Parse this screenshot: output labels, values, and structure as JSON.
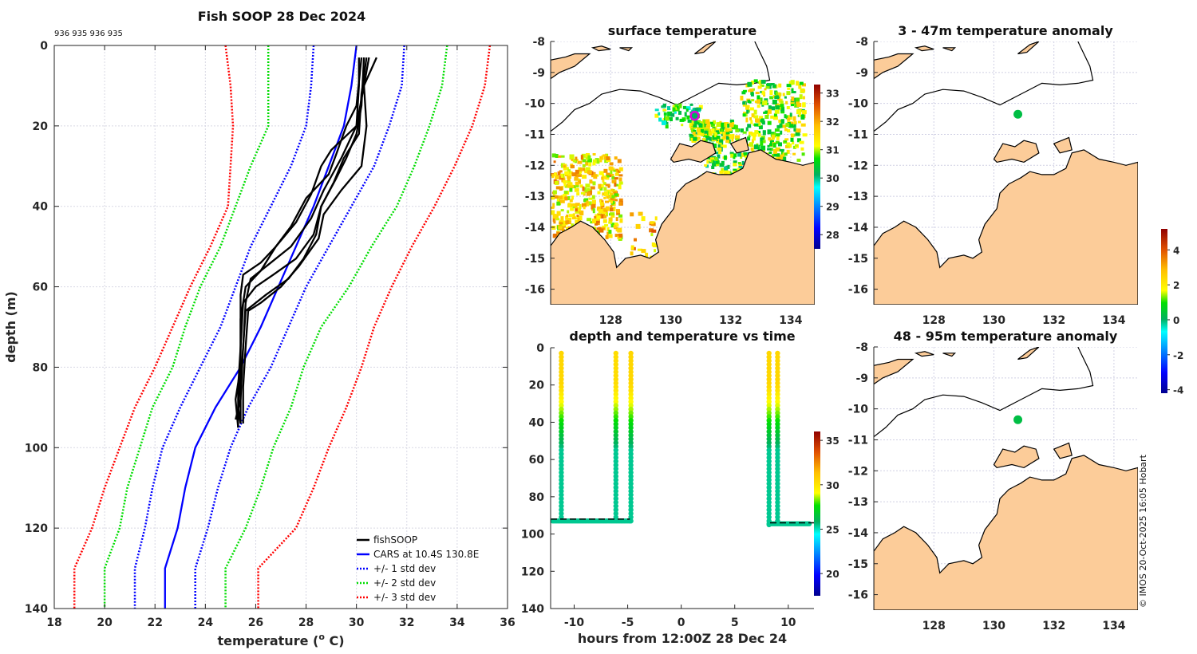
{
  "chart_data": [
    {
      "type": "line",
      "title": "Fish SOOP 28 Dec 2024",
      "annotation": "936 935 936 935",
      "xlabel": "temperature (o C)",
      "ylabel": "depth (m)",
      "xlim": [
        18,
        36
      ],
      "ylim": [
        0,
        140
      ],
      "y_reversed": true,
      "xticks": [
        18,
        20,
        22,
        24,
        26,
        28,
        30,
        32,
        34,
        36
      ],
      "yticks": [
        0,
        20,
        40,
        60,
        80,
        100,
        120,
        140
      ],
      "grid": true,
      "legend_position": "bottom-right",
      "legend": [
        {
          "label": "fishSOOP",
          "color": "#000000",
          "style": "solid"
        },
        {
          "label": "CARS at 10.4S 130.8E",
          "color": "#0000ff",
          "style": "solid"
        },
        {
          "label": "+/- 1 std dev",
          "color": "#0000ff",
          "style": "dotted"
        },
        {
          "label": "+/- 2 std dev",
          "color": "#00dd00",
          "style": "dotted"
        },
        {
          "label": "+/- 3 std dev",
          "color": "#ff0000",
          "style": "dotted"
        }
      ],
      "series": [
        {
          "name": "CARS at 10.4S 130.8E",
          "color": "#0000ff",
          "style": "solid",
          "points": [
            [
              30.0,
              0
            ],
            [
              29.8,
              10
            ],
            [
              29.5,
              20
            ],
            [
              28.9,
              30
            ],
            [
              28.3,
              40
            ],
            [
              27.6,
              50
            ],
            [
              26.9,
              60
            ],
            [
              26.2,
              70
            ],
            [
              25.4,
              80
            ],
            [
              24.4,
              90
            ],
            [
              23.6,
              100
            ],
            [
              23.2,
              110
            ],
            [
              22.9,
              120
            ],
            [
              22.4,
              130
            ],
            [
              22.4,
              140
            ]
          ]
        },
        {
          "name": "CARS -1 std dev",
          "color": "#0000ff",
          "style": "dotted",
          "points": [
            [
              28.3,
              0
            ],
            [
              28.2,
              10
            ],
            [
              28.0,
              20
            ],
            [
              27.4,
              30
            ],
            [
              26.6,
              40
            ],
            [
              25.8,
              50
            ],
            [
              25.2,
              60
            ],
            [
              24.6,
              70
            ],
            [
              23.8,
              80
            ],
            [
              23.0,
              90
            ],
            [
              22.3,
              100
            ],
            [
              21.9,
              110
            ],
            [
              21.6,
              120
            ],
            [
              21.2,
              130
            ],
            [
              21.2,
              140
            ]
          ]
        },
        {
          "name": "CARS +1 std dev",
          "color": "#0000ff",
          "style": "dotted",
          "points": [
            [
              31.9,
              0
            ],
            [
              31.8,
              10
            ],
            [
              31.3,
              20
            ],
            [
              30.7,
              30
            ],
            [
              29.8,
              40
            ],
            [
              28.9,
              50
            ],
            [
              28.0,
              60
            ],
            [
              27.3,
              70
            ],
            [
              26.6,
              80
            ],
            [
              25.7,
              90
            ],
            [
              25.0,
              100
            ],
            [
              24.5,
              110
            ],
            [
              24.1,
              120
            ],
            [
              23.6,
              130
            ],
            [
              23.6,
              140
            ]
          ]
        },
        {
          "name": "CARS -2 std dev",
          "color": "#00dd00",
          "style": "dotted",
          "points": [
            [
              26.5,
              0
            ],
            [
              26.5,
              10
            ],
            [
              26.5,
              20
            ],
            [
              25.8,
              30
            ],
            [
              25.2,
              40
            ],
            [
              24.6,
              50
            ],
            [
              23.8,
              60
            ],
            [
              23.2,
              70
            ],
            [
              22.7,
              80
            ],
            [
              21.9,
              90
            ],
            [
              21.4,
              100
            ],
            [
              20.9,
              110
            ],
            [
              20.6,
              120
            ],
            [
              20.0,
              130
            ],
            [
              20.0,
              140
            ]
          ]
        },
        {
          "name": "CARS +2 std dev",
          "color": "#00dd00",
          "style": "dotted",
          "points": [
            [
              33.6,
              0
            ],
            [
              33.4,
              10
            ],
            [
              32.9,
              20
            ],
            [
              32.3,
              30
            ],
            [
              31.6,
              40
            ],
            [
              30.6,
              50
            ],
            [
              29.7,
              60
            ],
            [
              28.6,
              70
            ],
            [
              27.9,
              80
            ],
            [
              27.4,
              90
            ],
            [
              26.7,
              100
            ],
            [
              26.2,
              110
            ],
            [
              25.6,
              120
            ],
            [
              24.8,
              130
            ],
            [
              24.8,
              140
            ]
          ]
        },
        {
          "name": "CARS -3 std dev",
          "color": "#ff0000",
          "style": "dotted",
          "points": [
            [
              24.8,
              0
            ],
            [
              25.0,
              10
            ],
            [
              25.1,
              20
            ],
            [
              25.0,
              30
            ],
            [
              24.9,
              40
            ],
            [
              24.2,
              50
            ],
            [
              23.4,
              60
            ],
            [
              22.7,
              70
            ],
            [
              22.0,
              80
            ],
            [
              21.2,
              90
            ],
            [
              20.6,
              100
            ],
            [
              20.0,
              110
            ],
            [
              19.5,
              120
            ],
            [
              18.8,
              130
            ],
            [
              18.8,
              140
            ]
          ]
        },
        {
          "name": "CARS +3 std dev",
          "color": "#ff0000",
          "style": "dotted",
          "points": [
            [
              35.3,
              0
            ],
            [
              35.1,
              10
            ],
            [
              34.6,
              20
            ],
            [
              33.9,
              30
            ],
            [
              33.1,
              40
            ],
            [
              32.2,
              50
            ],
            [
              31.4,
              60
            ],
            [
              30.7,
              70
            ],
            [
              30.2,
              80
            ],
            [
              29.6,
              90
            ],
            [
              28.9,
              100
            ],
            [
              28.3,
              110
            ],
            [
              27.6,
              120
            ],
            [
              26.1,
              130
            ],
            [
              26.1,
              140
            ]
          ]
        },
        {
          "name": "fishSOOP profile 1",
          "color": "#000000",
          "style": "solid",
          "points": [
            [
              30.1,
              3
            ],
            [
              30.1,
              10
            ],
            [
              30.0,
              20
            ],
            [
              29.0,
              26
            ],
            [
              28.6,
              30
            ],
            [
              28.2,
              37
            ],
            [
              27.6,
              44
            ],
            [
              26.8,
              50
            ],
            [
              26.2,
              54
            ],
            [
              25.5,
              57
            ],
            [
              25.4,
              62
            ],
            [
              25.4,
              70
            ],
            [
              25.4,
              80
            ],
            [
              25.2,
              88
            ],
            [
              25.3,
              95
            ]
          ]
        },
        {
          "name": "fishSOOP profile 2",
          "color": "#000000",
          "style": "solid",
          "points": [
            [
              30.2,
              3
            ],
            [
              30.0,
              15
            ],
            [
              29.6,
              20
            ],
            [
              29.2,
              27
            ],
            [
              28.9,
              32
            ],
            [
              28.0,
              38
            ],
            [
              27.4,
              45
            ],
            [
              26.8,
              50
            ],
            [
              26.2,
              56
            ],
            [
              25.6,
              60
            ],
            [
              25.4,
              68
            ],
            [
              25.4,
              80
            ],
            [
              25.3,
              90
            ],
            [
              25.4,
              94
            ]
          ]
        },
        {
          "name": "fishSOOP profile 3",
          "color": "#000000",
          "style": "solid",
          "points": [
            [
              30.3,
              3
            ],
            [
              30.2,
              15
            ],
            [
              30.0,
              22
            ],
            [
              29.6,
              28
            ],
            [
              29.2,
              33
            ],
            [
              28.6,
              40
            ],
            [
              28.3,
              47
            ],
            [
              27.6,
              53
            ],
            [
              26.7,
              57
            ],
            [
              26.0,
              60
            ],
            [
              25.5,
              64
            ],
            [
              25.4,
              75
            ],
            [
              25.3,
              85
            ],
            [
              25.3,
              95
            ]
          ]
        },
        {
          "name": "fishSOOP profile 4",
          "color": "#000000",
          "style": "solid",
          "points": [
            [
              30.4,
              3
            ],
            [
              30.2,
              12
            ],
            [
              30.1,
              22
            ],
            [
              29.5,
              28
            ],
            [
              29.1,
              34
            ],
            [
              28.6,
              40
            ],
            [
              28.4,
              47
            ],
            [
              27.9,
              53
            ],
            [
              27.3,
              58
            ],
            [
              26.4,
              62
            ],
            [
              25.6,
              66
            ],
            [
              25.5,
              75
            ],
            [
              25.4,
              85
            ],
            [
              25.4,
              94
            ]
          ]
        },
        {
          "name": "fishSOOP profile 5",
          "color": "#000000",
          "style": "solid",
          "points": [
            [
              30.5,
              3
            ],
            [
              30.3,
              10
            ],
            [
              30.4,
              20
            ],
            [
              30.2,
              30
            ],
            [
              29.4,
              36
            ],
            [
              28.7,
              42
            ],
            [
              28.5,
              48
            ],
            [
              27.7,
              55
            ],
            [
              27.0,
              60
            ],
            [
              26.2,
              64
            ],
            [
              25.7,
              66
            ],
            [
              25.6,
              75
            ],
            [
              25.5,
              85
            ],
            [
              25.5,
              94
            ]
          ]
        },
        {
          "name": "fishSOOP profile 6",
          "color": "#000000",
          "style": "solid",
          "points": [
            [
              30.8,
              3
            ],
            [
              30.3,
              10
            ],
            [
              30.0,
              20
            ],
            [
              29.4,
              28
            ],
            [
              28.7,
              36
            ],
            [
              28.2,
              43
            ],
            [
              27.4,
              50
            ],
            [
              26.6,
              54
            ],
            [
              25.8,
              58
            ],
            [
              25.6,
              64
            ],
            [
              25.5,
              75
            ],
            [
              25.4,
              88
            ],
            [
              25.2,
              93
            ]
          ]
        }
      ]
    },
    {
      "type": "heatmap",
      "title": "surface temperature",
      "subtype": "map",
      "xlim": [
        126,
        134.8
      ],
      "ylim": [
        -16.5,
        -8
      ],
      "xticks": [
        128,
        130,
        132,
        134
      ],
      "yticks": [
        -8,
        -9,
        -10,
        -11,
        -12,
        -13,
        -14,
        -15,
        -16
      ],
      "colorbar": {
        "range": [
          27.5,
          33.3
        ],
        "ticks": [
          28,
          29,
          30,
          31,
          32,
          33
        ],
        "colormap": "jet"
      },
      "marker": {
        "lon": 130.8,
        "lat": -10.4,
        "color": "#dd00dd"
      },
      "land_color": "#fccc99",
      "grid": true
    },
    {
      "type": "scatter",
      "title": "depth and temperature vs time",
      "xlabel": "hours from 12:00Z 28 Dec 24",
      "ylabel": "",
      "xlim": [
        -12.2,
        12.4
      ],
      "ylim": [
        0,
        140
      ],
      "y_reversed": true,
      "xticks": [
        -10,
        -5,
        0,
        5,
        10
      ],
      "yticks": [
        0,
        20,
        40,
        60,
        80,
        100,
        120,
        140
      ],
      "colorbar": {
        "range": [
          17.5,
          36
        ],
        "ticks": [
          20,
          25,
          30,
          35
        ],
        "colormap": "jet"
      },
      "bottom_depth_line": [
        {
          "x": [
            -12.2,
            -4.8
          ],
          "depth": 92
        },
        {
          "x": [
            8.3,
            12.4
          ],
          "depth": 94
        }
      ],
      "casts": [
        {
          "x": -11.2,
          "max_depth": 92,
          "surface_temp": 30.5,
          "bottom_temp": 25.4
        },
        {
          "x": -6.1,
          "max_depth": 92,
          "surface_temp": 30.3,
          "bottom_temp": 25.4
        },
        {
          "x": -4.7,
          "max_depth": 93,
          "surface_temp": 30.5,
          "bottom_temp": 25.4
        },
        {
          "x": 8.2,
          "max_depth": 95,
          "surface_temp": 30.5,
          "bottom_temp": 25.4
        },
        {
          "x": 9.0,
          "max_depth": 94,
          "surface_temp": 30.5,
          "bottom_temp": 25.4
        }
      ],
      "bottom_segments": [
        {
          "x": [
            -12.0,
            -4.7
          ],
          "depth": 93,
          "temp": 25.4
        },
        {
          "x": [
            8.2,
            12.0
          ],
          "depth": 94.5,
          "temp": 25.4
        }
      ]
    },
    {
      "type": "heatmap",
      "title": "3 - 47m temperature anomaly",
      "subtype": "map",
      "xlim": [
        126,
        134.8
      ],
      "ylim": [
        -16.5,
        -8
      ],
      "xticks": [
        128,
        130,
        132,
        134
      ],
      "yticks": [
        -8,
        -9,
        -10,
        -11,
        -12,
        -13,
        -14,
        -15,
        -16
      ],
      "points": [
        {
          "lon": 130.8,
          "lat": -10.35,
          "anomaly": 0.3
        }
      ],
      "land_color": "#fccc99",
      "grid": true
    },
    {
      "type": "heatmap",
      "title": "48 - 95m temperature anomaly",
      "subtype": "map",
      "xlim": [
        126,
        134.8
      ],
      "ylim": [
        -16.5,
        -8
      ],
      "xticks": [
        128,
        130,
        132,
        134
      ],
      "yticks": [
        -8,
        -9,
        -10,
        -11,
        -12,
        -13,
        -14,
        -15,
        -16
      ],
      "points": [
        {
          "lon": 130.8,
          "lat": -10.35,
          "anomaly": 0.3
        }
      ],
      "land_color": "#fccc99",
      "grid": true,
      "colorbar": {
        "range": [
          -4.2,
          5.2
        ],
        "ticks": [
          -4,
          -2,
          0,
          2,
          4
        ],
        "colormap": "jet"
      }
    }
  ],
  "credit": "© IMOS 20-Oct-2025 16:05 Hobart"
}
